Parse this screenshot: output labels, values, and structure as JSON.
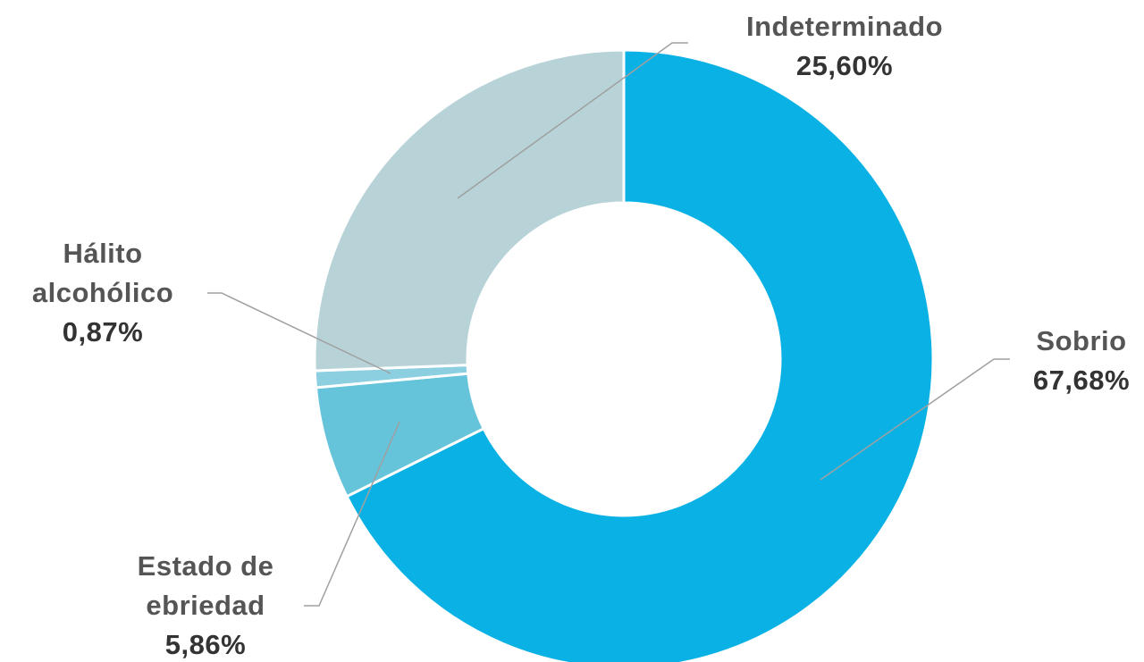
{
  "chart_data": {
    "type": "donut",
    "categories": [
      "Sobrio",
      "Estado de ebriedad",
      "Hálito alcohólico",
      "Indeterminado"
    ],
    "values": [
      67.68,
      5.86,
      0.87,
      25.6
    ],
    "value_labels": [
      "67,68%",
      "5,86%",
      "0,87%",
      "25,60%"
    ],
    "colors": [
      "#0ab1e4",
      "#65c3da",
      "#8ccfe0",
      "#b7d3d8"
    ]
  }
}
